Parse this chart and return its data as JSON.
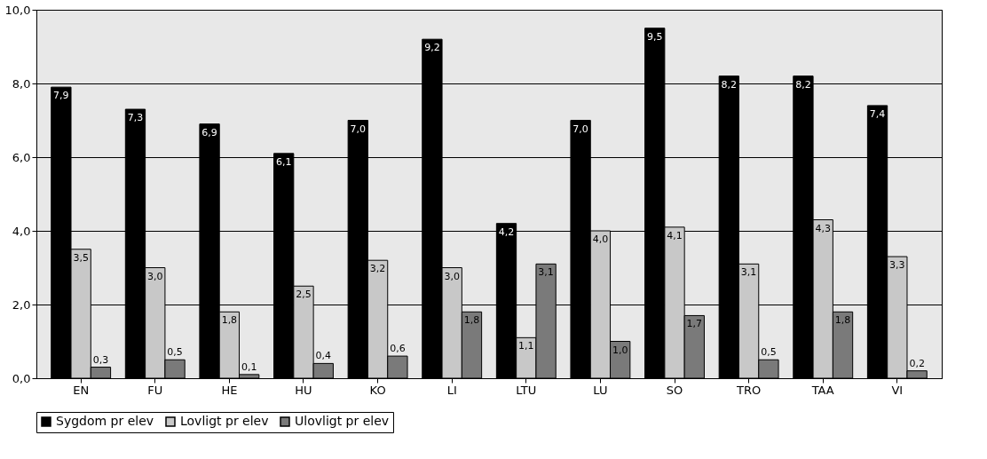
{
  "chart_data": {
    "type": "bar",
    "categories": [
      "EN",
      "FU",
      "HE",
      "HU",
      "KO",
      "LI",
      "LTU",
      "LU",
      "SO",
      "TRO",
      "TAA",
      "VI"
    ],
    "series": [
      {
        "name": "Sygdom pr elev",
        "color": "#000000",
        "values": [
          7.9,
          7.3,
          6.9,
          6.1,
          7.0,
          9.2,
          4.2,
          7.0,
          9.5,
          8.2,
          8.2,
          7.4
        ],
        "value_labels": [
          "7,9",
          "7,3",
          "6,9",
          "6,1",
          "7,0",
          "9,2",
          "4,2",
          "7,0",
          "9,5",
          "8,2",
          "8,2",
          "7,4"
        ]
      },
      {
        "name": "Lovligt pr elev",
        "color": "#c8c8c8",
        "values": [
          3.5,
          3.0,
          1.8,
          2.5,
          3.2,
          3.0,
          1.1,
          4.0,
          4.1,
          3.1,
          4.3,
          3.3
        ],
        "value_labels": [
          "3,5",
          "3,0",
          "1,8",
          "2,5",
          "3,2",
          "3,0",
          "1,1",
          "4,0",
          "4,1",
          "3,1",
          "4,3",
          "3,3"
        ]
      },
      {
        "name": "Ulovligt pr elev",
        "color": "#7a7a7a",
        "values": [
          0.3,
          0.5,
          0.1,
          0.4,
          0.6,
          1.8,
          3.1,
          1.0,
          1.7,
          0.5,
          1.8,
          0.2
        ],
        "value_labels": [
          "0,3",
          "0,5",
          "0,1",
          "0,4",
          "0,6",
          "1,8",
          "3,1",
          "1,0",
          "1,7",
          "0,5",
          "1,8",
          "0,2"
        ]
      }
    ],
    "ylim": [
      0,
      10
    ],
    "yticks": [
      {
        "value": 0,
        "label": "0,0"
      },
      {
        "value": 2,
        "label": "2,0"
      },
      {
        "value": 4,
        "label": "4,0"
      },
      {
        "value": 6,
        "label": "6,0"
      },
      {
        "value": 8,
        "label": "8,0"
      },
      {
        "value": 10,
        "label": "10,0"
      }
    ],
    "grid": "y",
    "legend": "bottom"
  }
}
